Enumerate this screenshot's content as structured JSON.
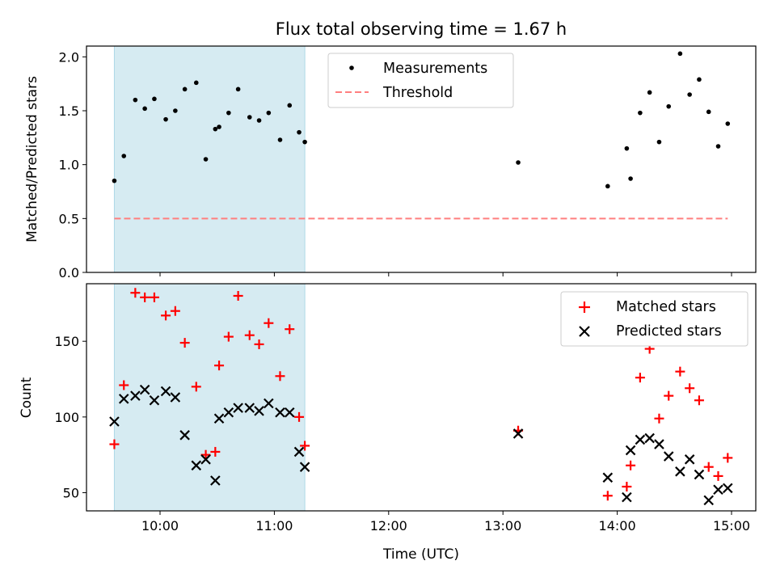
{
  "chart_data": {
    "title": "Flux total observing time = 1.67 h",
    "xlabel": "Time (UTC)",
    "x_ticks": [
      "10:00",
      "11:00",
      "12:00",
      "13:00",
      "14:00",
      "15:00"
    ],
    "shaded_interval": [
      "09:36",
      "11:16"
    ],
    "shade_color": "#add8e6",
    "top": {
      "type": "scatter",
      "ylabel": "Matched/Predicted stars",
      "ylim": [
        0,
        2.1
      ],
      "y_ticks": [
        "0.0",
        "0.5",
        "1.0",
        "1.5",
        "2.0"
      ],
      "legend": {
        "placement": "upper center",
        "entries": [
          "Measurements",
          "Threshold"
        ]
      },
      "series": [
        {
          "name": "Measurements",
          "color": "#000000",
          "points": [
            [
              "09:36",
              0.85
            ],
            [
              "09:41",
              1.08
            ],
            [
              "09:47",
              1.6
            ],
            [
              "09:52",
              1.52
            ],
            [
              "09:57",
              1.61
            ],
            [
              "10:03",
              1.42
            ],
            [
              "10:08",
              1.5
            ],
            [
              "10:13",
              1.7
            ],
            [
              "10:19",
              1.76
            ],
            [
              "10:24",
              1.05
            ],
            [
              "10:29",
              1.33
            ],
            [
              "10:31",
              1.35
            ],
            [
              "10:36",
              1.48
            ],
            [
              "10:41",
              1.7
            ],
            [
              "10:47",
              1.44
            ],
            [
              "10:52",
              1.41
            ],
            [
              "10:57",
              1.48
            ],
            [
              "11:03",
              1.23
            ],
            [
              "11:08",
              1.55
            ],
            [
              "11:13",
              1.3
            ],
            [
              "11:16",
              1.21
            ],
            [
              "13:08",
              1.02
            ],
            [
              "13:55",
              0.8
            ],
            [
              "14:05",
              1.15
            ],
            [
              "14:07",
              0.87
            ],
            [
              "14:12",
              1.48
            ],
            [
              "14:17",
              1.67
            ],
            [
              "14:22",
              1.21
            ],
            [
              "14:27",
              1.54
            ],
            [
              "14:33",
              2.03
            ],
            [
              "14:38",
              1.65
            ],
            [
              "14:43",
              1.79
            ],
            [
              "14:48",
              1.49
            ],
            [
              "14:53",
              1.17
            ],
            [
              "14:58",
              1.38
            ]
          ]
        },
        {
          "name": "Threshold",
          "color": "#ff7f7f",
          "value": 0.5,
          "x_range": [
            "09:36",
            "14:58"
          ]
        }
      ]
    },
    "bottom": {
      "type": "scatter",
      "ylabel": "Count",
      "ylim": [
        38,
        188
      ],
      "y_ticks": [
        "50",
        "100",
        "150"
      ],
      "legend": {
        "placement": "upper right",
        "entries": [
          "Matched stars",
          "Predicted stars"
        ]
      },
      "x": [
        "09:36",
        "09:41",
        "09:47",
        "09:52",
        "09:57",
        "10:03",
        "10:08",
        "10:13",
        "10:19",
        "10:24",
        "10:29",
        "10:31",
        "10:36",
        "10:41",
        "10:47",
        "10:52",
        "10:57",
        "11:03",
        "11:08",
        "11:13",
        "11:16",
        "13:08",
        "13:55",
        "14:05",
        "14:07",
        "14:12",
        "14:17",
        "14:22",
        "14:27",
        "14:33",
        "14:38",
        "14:43",
        "14:48",
        "14:53",
        "14:58"
      ],
      "series": [
        {
          "name": "Matched stars",
          "marker": "+",
          "color": "#ff0000",
          "values": [
            82,
            121,
            182,
            179,
            179,
            167,
            170,
            149,
            120,
            75,
            77,
            134,
            153,
            180,
            154,
            148,
            162,
            127,
            158,
            100,
            81,
            91,
            48,
            54,
            68,
            126,
            145,
            99,
            114,
            130,
            119,
            111,
            67,
            61,
            73
          ]
        },
        {
          "name": "Predicted stars",
          "marker": "x",
          "color": "#000000",
          "values": [
            97,
            112,
            114,
            118,
            111,
            117,
            113,
            88,
            68,
            72,
            58,
            99,
            103,
            106,
            106,
            104,
            109,
            103,
            103,
            77,
            67,
            89,
            60,
            47,
            78,
            85,
            86,
            82,
            74,
            64,
            72,
            62,
            45,
            52,
            53
          ]
        }
      ]
    }
  }
}
